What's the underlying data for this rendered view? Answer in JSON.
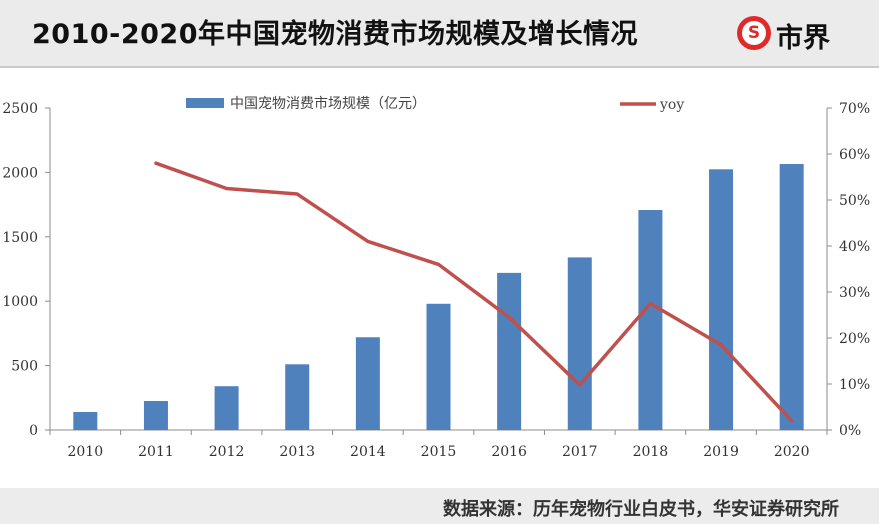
{
  "header": {
    "title": "2010-2020年中国宠物消费市场规模及增长情况",
    "logo_mark": "S",
    "logo_text": "市界"
  },
  "footer": {
    "source": "数据来源：历年宠物行业白皮书，华安证券研究所"
  },
  "colors": {
    "bar": "#4f81bd",
    "line": "#c0504d",
    "logo_red": "#e0292a",
    "axis": "#8c8c8c"
  },
  "chart_data": {
    "type": "bar",
    "categories": [
      "2010",
      "2011",
      "2012",
      "2013",
      "2014",
      "2015",
      "2016",
      "2017",
      "2018",
      "2019",
      "2020"
    ],
    "series": [
      {
        "name": "中国宠物消费市场规模（亿元）",
        "type": "bar",
        "axis": "left",
        "values": [
          140,
          225,
          340,
          510,
          720,
          980,
          1220,
          1340,
          1708,
          2024,
          2065
        ]
      },
      {
        "name": "yoy",
        "type": "line",
        "axis": "right",
        "values": [
          null,
          0.58,
          0.525,
          0.513,
          0.41,
          0.36,
          0.245,
          0.098,
          0.275,
          0.185,
          0.02
        ]
      }
    ],
    "yleft": {
      "lim": [
        0,
        2500
      ],
      "ticks": [
        0,
        500,
        1000,
        1500,
        2000,
        2500
      ],
      "tick_labels": [
        "0",
        "500",
        "1000",
        "1500",
        "2000",
        "2500"
      ]
    },
    "yright": {
      "lim": [
        0,
        0.7
      ],
      "ticks": [
        0,
        0.1,
        0.2,
        0.3,
        0.4,
        0.5,
        0.6,
        0.7
      ],
      "tick_labels": [
        "0%",
        "10%",
        "20%",
        "30%",
        "40%",
        "50%",
        "60%",
        "70%"
      ]
    },
    "legend_position": "top",
    "grid": false
  }
}
